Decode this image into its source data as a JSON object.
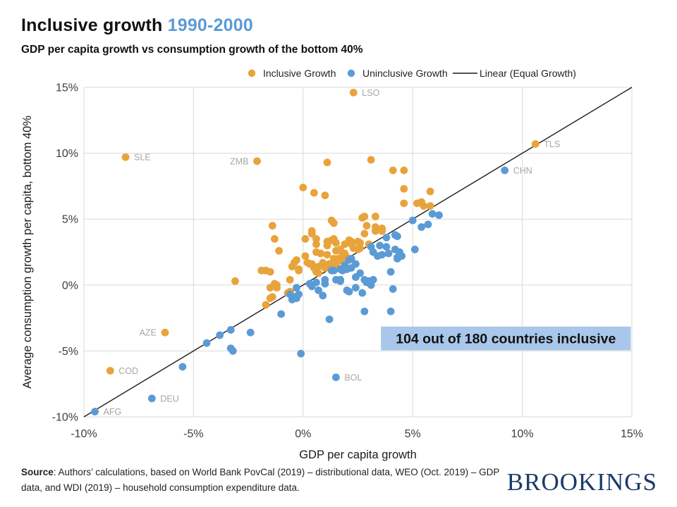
{
  "header": {
    "title": "Inclusive growth",
    "title_period": "1990-2000",
    "subtitle": "GDP per capita growth vs consumption growth of the bottom 40%"
  },
  "legend": [
    {
      "label": "Inclusive Growth",
      "marker": "dot",
      "color": "#E8A33B"
    },
    {
      "label": "Uninclusive Growth",
      "marker": "dot",
      "color": "#5B9BD5"
    },
    {
      "label": "Linear (Equal Growth)",
      "marker": "line",
      "color": "#1a1a1a"
    }
  ],
  "chart_data": {
    "type": "scatter",
    "xlabel": "GDP per capita growth",
    "ylabel": "Average consumption growth per capita, bottom 40%",
    "xlim": [
      -10,
      15
    ],
    "ylim": [
      -10,
      15
    ],
    "grid": true,
    "xticks": [
      {
        "v": -10,
        "label": "-10%"
      },
      {
        "v": -5,
        "label": "-5%"
      },
      {
        "v": 0,
        "label": "0%"
      },
      {
        "v": 5,
        "label": "5%"
      },
      {
        "v": 10,
        "label": "10%"
      },
      {
        "v": 15,
        "label": "15%"
      }
    ],
    "yticks": [
      {
        "v": 15,
        "label": "15%"
      },
      {
        "v": 10,
        "label": "10%"
      },
      {
        "v": 5,
        "label": "5%"
      },
      {
        "v": 0,
        "label": "0%"
      },
      {
        "v": -5,
        "label": "-5%"
      },
      {
        "v": -10,
        "label": "-10%"
      }
    ],
    "line": {
      "name": "Linear (Equal Growth)",
      "from": [
        -10,
        -10
      ],
      "to": [
        15,
        15
      ],
      "color": "#1a1a1a"
    },
    "series": [
      {
        "key": "inclusive",
        "name": "Inclusive Growth",
        "color": "#E8A33B",
        "points": [
          [
            1.1,
            9.3
          ],
          [
            3.1,
            9.5
          ],
          [
            0.0,
            7.4
          ],
          [
            0.5,
            7.0
          ],
          [
            1.0,
            6.8
          ],
          [
            4.1,
            8.7
          ],
          [
            4.6,
            8.7
          ],
          [
            4.6,
            7.3
          ],
          [
            5.8,
            7.1
          ],
          [
            4.6,
            6.2
          ],
          [
            5.2,
            6.2
          ],
          [
            5.4,
            6.3
          ],
          [
            5.5,
            6.0
          ],
          [
            5.8,
            6.0
          ],
          [
            2.8,
            5.2
          ],
          [
            3.3,
            5.2
          ],
          [
            2.7,
            5.1
          ],
          [
            1.3,
            4.9
          ],
          [
            1.4,
            4.7
          ],
          [
            2.9,
            4.5
          ],
          [
            3.3,
            4.4
          ],
          [
            3.6,
            4.1
          ],
          [
            -1.4,
            4.5
          ],
          [
            -1.3,
            3.5
          ],
          [
            -1.1,
            2.6
          ],
          [
            0.1,
            3.5
          ],
          [
            0.4,
            3.9
          ],
          [
            0.4,
            4.1
          ],
          [
            0.6,
            3.5
          ],
          [
            0.6,
            3.1
          ],
          [
            1.1,
            3.3
          ],
          [
            1.3,
            3.4
          ],
          [
            1.5,
            3.2
          ],
          [
            0.6,
            2.5
          ],
          [
            0.8,
            2.4
          ],
          [
            1.1,
            2.3
          ],
          [
            2.1,
            3.4
          ],
          [
            2.2,
            3.1
          ],
          [
            2.3,
            2.8
          ],
          [
            1.6,
            2.0
          ],
          [
            1.7,
            1.9
          ],
          [
            1.8,
            1.8
          ],
          [
            1.9,
            2.4
          ],
          [
            2.0,
            2.1
          ],
          [
            2.6,
            3.2
          ],
          [
            3.0,
            3.1
          ],
          [
            0.1,
            2.2
          ],
          [
            -0.3,
            1.9
          ],
          [
            -0.2,
            1.1
          ],
          [
            0.4,
            1.6
          ],
          [
            0.5,
            1.3
          ],
          [
            0.6,
            1.0
          ],
          [
            0.7,
            0.9
          ],
          [
            -1.2,
            0.0
          ],
          [
            -0.6,
            0.4
          ],
          [
            -0.6,
            -0.5
          ],
          [
            -0.7,
            -0.6
          ],
          [
            -3.1,
            0.3
          ],
          [
            -1.9,
            1.1
          ],
          [
            -1.7,
            1.1
          ],
          [
            -1.5,
            1.0
          ],
          [
            -1.5,
            -0.2
          ],
          [
            -1.5,
            -1.0
          ],
          [
            -1.4,
            -0.9
          ],
          [
            -1.3,
            0.1
          ],
          [
            -1.2,
            -0.2
          ],
          [
            -1.7,
            -1.5
          ],
          [
            -0.5,
            1.4
          ],
          [
            -0.2,
            1.2
          ],
          [
            0.2,
            1.7
          ],
          [
            -0.4,
            1.7
          ],
          [
            1.4,
            3.5
          ],
          [
            1.1,
            3.0
          ],
          [
            1.5,
            2.6
          ],
          [
            1.7,
            2.7
          ],
          [
            1.8,
            2.4
          ],
          [
            1.9,
            3.1
          ],
          [
            2.2,
            3.3
          ],
          [
            2.5,
            3.3
          ],
          [
            2.6,
            2.8
          ],
          [
            2.5,
            2.7
          ],
          [
            2.8,
            3.9
          ],
          [
            0.3,
            1.6
          ],
          [
            0.7,
            1.4
          ],
          [
            1.0,
            1.3
          ],
          [
            0.9,
            1.7
          ],
          [
            1.2,
            1.6
          ],
          [
            1.4,
            2.0
          ],
          [
            1.5,
            1.5
          ],
          [
            3.3,
            4.1
          ],
          [
            3.6,
            4.3
          ]
        ]
      },
      {
        "key": "uninclusive",
        "name": "Uninclusive Growth",
        "color": "#5B9BD5",
        "points": [
          [
            -5.5,
            -6.2
          ],
          [
            -4.4,
            -4.4
          ],
          [
            -3.8,
            -3.8
          ],
          [
            -3.3,
            -3.4
          ],
          [
            -3.3,
            -4.8
          ],
          [
            -3.2,
            -5.0
          ],
          [
            -2.4,
            -3.6
          ],
          [
            -1.0,
            -2.2
          ],
          [
            -0.1,
            -5.2
          ],
          [
            1.2,
            -2.6
          ],
          [
            2.8,
            -2.0
          ],
          [
            4.0,
            -2.0
          ],
          [
            0.3,
            0.1
          ],
          [
            0.4,
            -0.1
          ],
          [
            0.9,
            -0.8
          ],
          [
            1.5,
            0.4
          ],
          [
            1.7,
            1.2
          ],
          [
            2.1,
            1.9
          ],
          [
            2.2,
            2.0
          ],
          [
            2.4,
            1.6
          ],
          [
            2.0,
            1.2
          ],
          [
            3.1,
            2.9
          ],
          [
            3.2,
            2.5
          ],
          [
            3.5,
            3.0
          ],
          [
            3.8,
            2.9
          ],
          [
            3.4,
            2.2
          ],
          [
            3.6,
            2.3
          ],
          [
            3.9,
            2.4
          ],
          [
            4.2,
            2.7
          ],
          [
            2.6,
            0.9
          ],
          [
            2.8,
            0.4
          ],
          [
            3.0,
            0.3
          ],
          [
            1.7,
            0.4
          ],
          [
            1.0,
            0.4
          ],
          [
            0.6,
            0.2
          ],
          [
            4.0,
            1.0
          ],
          [
            4.3,
            2.0
          ],
          [
            3.1,
            0.0
          ],
          [
            2.0,
            -0.4
          ],
          [
            4.1,
            -0.3
          ],
          [
            4.2,
            3.8
          ],
          [
            4.3,
            3.7
          ],
          [
            3.8,
            3.6
          ],
          [
            4.4,
            2.5
          ],
          [
            5.1,
            2.7
          ],
          [
            4.5,
            2.2
          ],
          [
            5.0,
            4.9
          ],
          [
            5.9,
            5.4
          ],
          [
            6.2,
            5.3
          ],
          [
            5.4,
            4.4
          ],
          [
            5.7,
            4.6
          ],
          [
            4.3,
            2.1
          ],
          [
            3.2,
            0.4
          ],
          [
            2.9,
            0.2
          ],
          [
            0.7,
            -0.4
          ],
          [
            1.0,
            0.1
          ],
          [
            1.4,
            1.1
          ],
          [
            1.8,
            1.1
          ],
          [
            1.9,
            1.5
          ],
          [
            2.2,
            1.3
          ],
          [
            2.4,
            0.6
          ],
          [
            2.1,
            -0.5
          ],
          [
            2.7,
            -0.6
          ],
          [
            -0.6,
            -0.7
          ],
          [
            -0.3,
            -1.0
          ],
          [
            -0.3,
            -0.2
          ],
          [
            -0.2,
            -0.7
          ],
          [
            -0.5,
            -1.1
          ],
          [
            -0.4,
            -0.9
          ],
          [
            1.3,
            1.1
          ],
          [
            1.7,
            0.3
          ],
          [
            2.4,
            -0.2
          ]
        ]
      }
    ],
    "labeled_points": [
      {
        "code": "LSO",
        "x": 2.3,
        "y": 14.6,
        "series": "inclusive",
        "side": "right"
      },
      {
        "code": "SLE",
        "x": -8.1,
        "y": 9.7,
        "series": "inclusive",
        "side": "right"
      },
      {
        "code": "ZMB",
        "x": -2.1,
        "y": 9.4,
        "series": "inclusive",
        "side": "left"
      },
      {
        "code": "TLS",
        "x": 10.6,
        "y": 10.7,
        "series": "inclusive",
        "side": "right"
      },
      {
        "code": "CHN",
        "x": 9.2,
        "y": 8.7,
        "series": "uninclusive",
        "side": "right"
      },
      {
        "code": "AZE",
        "x": -6.3,
        "y": -3.6,
        "series": "inclusive",
        "side": "left"
      },
      {
        "code": "COD",
        "x": -8.8,
        "y": -6.5,
        "series": "inclusive",
        "side": "right"
      },
      {
        "code": "AFG",
        "x": -9.5,
        "y": -9.6,
        "series": "uninclusive",
        "side": "right"
      },
      {
        "code": "DEU",
        "x": -6.9,
        "y": -8.6,
        "series": "uninclusive",
        "side": "right"
      },
      {
        "code": "BOL",
        "x": 1.5,
        "y": -7.0,
        "series": "uninclusive",
        "side": "right"
      }
    ],
    "annotation": {
      "text": "104 out of 180 countries inclusive",
      "fill": "#A9C7EA",
      "x_range": [
        3.55,
        14.95
      ],
      "y_range": [
        -4.95,
        -3.15
      ]
    }
  },
  "footer": {
    "source_bold": "Source",
    "source_rest": ": Authors’ calculations, based on World Bank PovCal (2019) – distributional data, WEO (Oct. 2019) – GDP data, and WDI (2019) – household consumption expenditure data.",
    "logo": "BROOKINGS"
  }
}
